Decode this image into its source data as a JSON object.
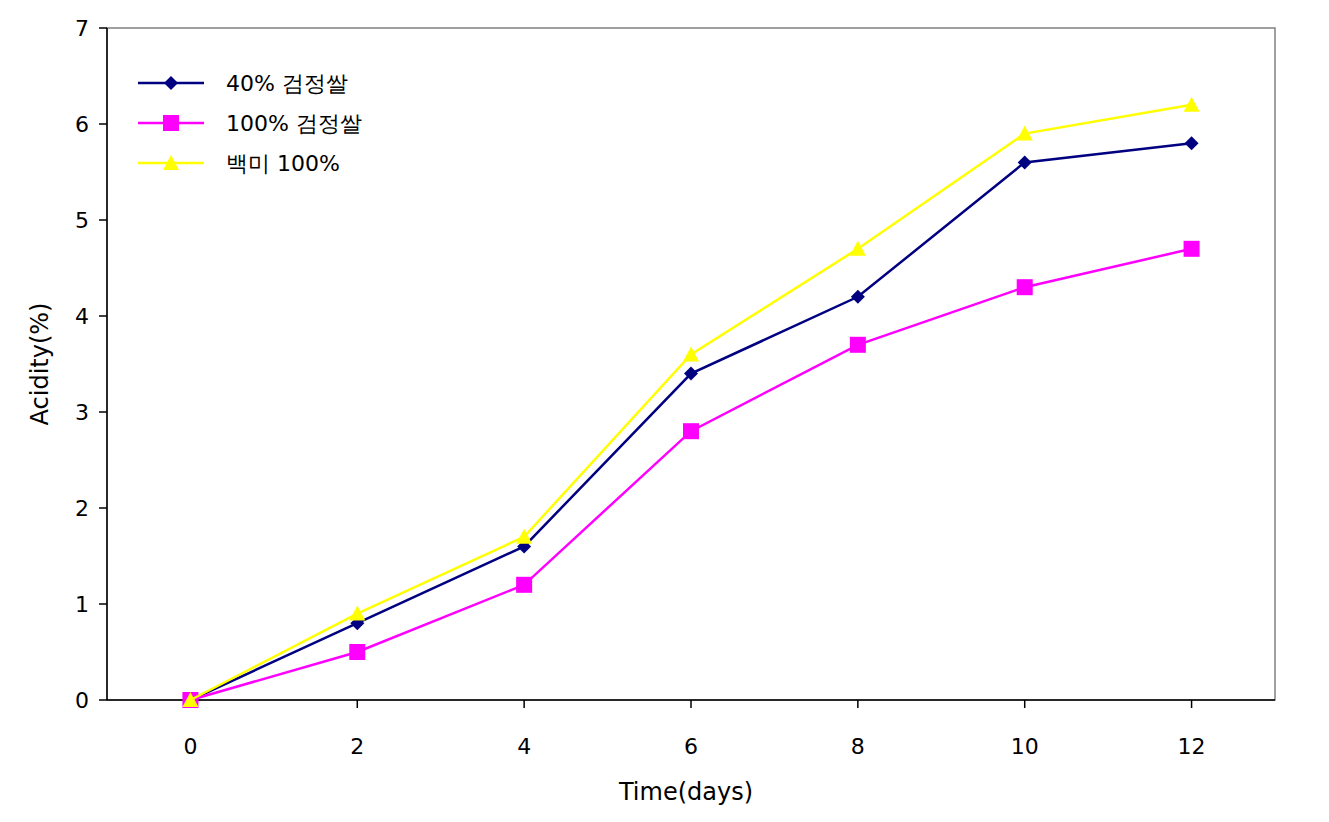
{
  "chart_data": {
    "type": "line",
    "x_label": "Time(days)",
    "y_label": "Acidity(%)",
    "x": [
      0,
      2,
      4,
      6,
      8,
      10,
      12
    ],
    "xlim": [
      -1,
      13
    ],
    "xticks": [
      0,
      2,
      4,
      6,
      8,
      10,
      12
    ],
    "ylim": [
      0,
      7
    ],
    "yticks": [
      0,
      1,
      2,
      3,
      4,
      5,
      6,
      7
    ],
    "grid": false,
    "legend": "top-left",
    "series": [
      {
        "name": "40% 검정쌀",
        "color": "#000080",
        "marker": "diamond",
        "values": [
          0,
          0.8,
          1.6,
          3.4,
          4.2,
          5.6,
          5.8
        ]
      },
      {
        "name": "100% 검정쌀",
        "color": "#ff00ff",
        "marker": "square",
        "values": [
          0,
          0.5,
          1.2,
          2.8,
          3.7,
          4.3,
          4.7
        ]
      },
      {
        "name": "백미 100%",
        "color": "#ffff00",
        "marker": "triangle",
        "values": [
          0,
          0.9,
          1.7,
          3.6,
          4.7,
          5.9,
          6.2
        ]
      }
    ]
  }
}
